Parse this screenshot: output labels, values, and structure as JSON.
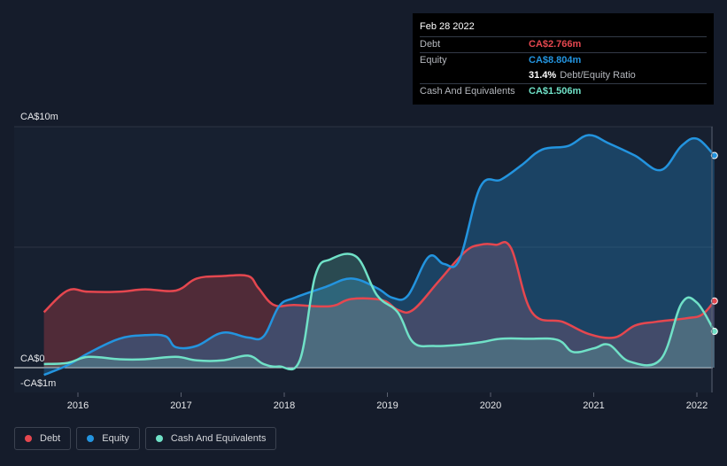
{
  "tooltip": {
    "date": "Feb 28 2022",
    "debt_label": "Debt",
    "debt_value": "CA$2.766m",
    "equity_label": "Equity",
    "equity_value": "CA$8.804m",
    "ratio_value": "31.4%",
    "ratio_label": "Debt/Equity Ratio",
    "cash_label": "Cash And Equivalents",
    "cash_value": "CA$1.506m"
  },
  "legend": {
    "debt": "Debt",
    "equity": "Equity",
    "cash": "Cash And Equivalents"
  },
  "colors": {
    "debt": "#e5474f",
    "equity": "#2394df",
    "cash": "#70e1c7",
    "background": "#151c2b"
  },
  "chart_data": {
    "type": "area",
    "y_tick_labels": [
      "CA$10m",
      "CA$0",
      "-CA$1m"
    ],
    "x_tick_labels": [
      "2016",
      "2017",
      "2018",
      "2019",
      "2020",
      "2021",
      "2022"
    ],
    "ylim": [
      -1,
      10
    ],
    "xlim": [
      2015.67,
      2022.17
    ],
    "grid": true,
    "legend_position": "bottom-left",
    "series": [
      {
        "name": "Debt",
        "x": [
          2015.67,
          2015.9,
          2016.1,
          2016.4,
          2016.65,
          2016.95,
          2017.15,
          2017.4,
          2017.65,
          2017.75,
          2017.9,
          2018.1,
          2018.45,
          2018.65,
          2018.95,
          2019.1,
          2019.25,
          2019.5,
          2019.75,
          2019.9,
          2020.05,
          2020.2,
          2020.4,
          2020.7,
          2020.95,
          2021.2,
          2021.4,
          2021.6,
          2021.9,
          2022.05,
          2022.17
        ],
        "values": [
          2.3,
          3.2,
          3.15,
          3.15,
          3.25,
          3.2,
          3.7,
          3.8,
          3.8,
          3.3,
          2.6,
          2.6,
          2.55,
          2.85,
          2.8,
          2.4,
          2.4,
          3.6,
          4.8,
          5.1,
          5.1,
          4.95,
          2.3,
          1.9,
          1.4,
          1.25,
          1.75,
          1.9,
          2.05,
          2.2,
          2.766
        ]
      },
      {
        "name": "Equity",
        "x": [
          2015.67,
          2015.9,
          2016.1,
          2016.4,
          2016.65,
          2016.85,
          2016.95,
          2017.15,
          2017.4,
          2017.65,
          2017.8,
          2017.95,
          2018.1,
          2018.4,
          2018.65,
          2018.9,
          2019.05,
          2019.2,
          2019.4,
          2019.55,
          2019.7,
          2019.9,
          2020.1,
          2020.3,
          2020.5,
          2020.75,
          2020.95,
          2021.15,
          2021.4,
          2021.65,
          2021.85,
          2022.0,
          2022.17
        ],
        "values": [
          -0.3,
          0.1,
          0.6,
          1.2,
          1.35,
          1.3,
          0.85,
          0.9,
          1.45,
          1.25,
          1.3,
          2.55,
          2.9,
          3.35,
          3.7,
          3.3,
          2.9,
          3.0,
          4.6,
          4.3,
          4.5,
          7.5,
          7.8,
          8.4,
          9.05,
          9.2,
          9.65,
          9.3,
          8.8,
          8.2,
          9.2,
          9.5,
          8.804
        ]
      },
      {
        "name": "Cash And Equivalents",
        "x": [
          2015.67,
          2015.9,
          2016.1,
          2016.4,
          2016.65,
          2016.95,
          2017.15,
          2017.4,
          2017.65,
          2017.8,
          2017.95,
          2018.15,
          2018.3,
          2018.45,
          2018.7,
          2018.9,
          2019.1,
          2019.25,
          2019.45,
          2019.7,
          2019.9,
          2020.1,
          2020.35,
          2020.65,
          2020.8,
          2021.0,
          2021.15,
          2021.35,
          2021.65,
          2021.85,
          2022.0,
          2022.17
        ],
        "values": [
          0.15,
          0.2,
          0.45,
          0.35,
          0.35,
          0.45,
          0.3,
          0.3,
          0.5,
          0.15,
          0.05,
          0.3,
          3.8,
          4.5,
          4.6,
          3.0,
          2.3,
          1.05,
          0.9,
          0.95,
          1.05,
          1.2,
          1.2,
          1.15,
          0.65,
          0.8,
          0.95,
          0.25,
          0.35,
          2.65,
          2.7,
          1.506
        ]
      }
    ]
  }
}
